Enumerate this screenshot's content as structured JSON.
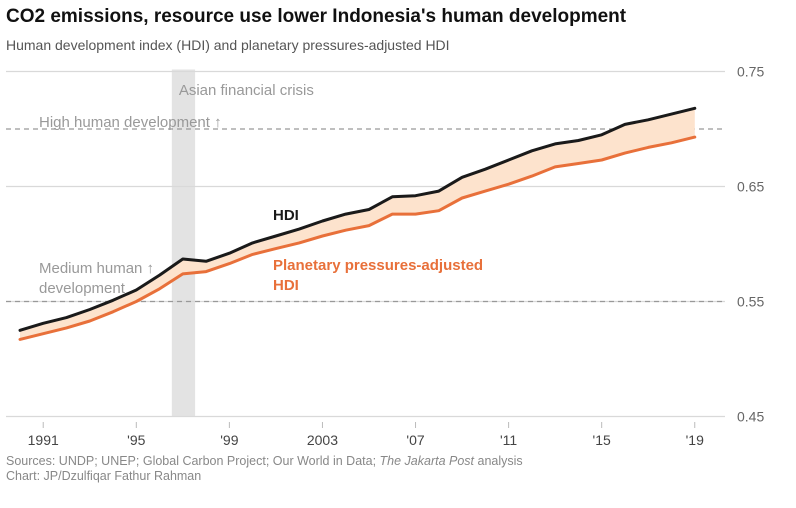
{
  "title": "CO2 emissions, resource use lower Indonesia's human development",
  "subtitle": "Human development index (HDI) and planetary pressures-adjusted HDI",
  "footer": {
    "sources_prefix": "Sources: UNDP; UNEP; Global Carbon Project; Our World in Data; ",
    "sources_italic": "The Jakarta Post",
    "sources_suffix": " analysis",
    "credit": "Chart: JP/Dzulfiqar Fathur Rahman"
  },
  "colors": {
    "hdi": "#1a1a1a",
    "pphdi": "#e8703a",
    "band": "#fde3cd",
    "crisis": "#e3e3e3",
    "grid": "#d9d9d9",
    "threshold": "#999999",
    "muted_text": "#999999"
  },
  "chart_data": {
    "type": "line",
    "title": "CO2 emissions, resource use lower Indonesia's human development",
    "subtitle": "Human development index (HDI) and planetary pressures-adjusted HDI",
    "x": [
      1990,
      1991,
      1992,
      1993,
      1994,
      1995,
      1996,
      1997,
      1998,
      1999,
      2000,
      2001,
      2002,
      2003,
      2004,
      2005,
      2006,
      2007,
      2008,
      2009,
      2010,
      2011,
      2012,
      2013,
      2014,
      2015,
      2016,
      2017,
      2018,
      2019
    ],
    "series": [
      {
        "name": "HDI",
        "color": "#1a1a1a",
        "values": [
          0.525,
          0.531,
          0.536,
          0.543,
          0.551,
          0.56,
          0.573,
          0.587,
          0.585,
          0.592,
          0.601,
          0.607,
          0.613,
          0.62,
          0.626,
          0.63,
          0.641,
          0.642,
          0.646,
          0.658,
          0.665,
          0.673,
          0.681,
          0.687,
          0.69,
          0.695,
          0.704,
          0.708,
          0.713,
          0.718
        ]
      },
      {
        "name": "Planetary pressures-adjusted HDI",
        "color": "#e8703a",
        "values": [
          0.517,
          0.522,
          0.527,
          0.533,
          0.541,
          0.55,
          0.561,
          0.574,
          0.576,
          0.583,
          0.591,
          0.596,
          0.601,
          0.607,
          0.612,
          0.616,
          0.626,
          0.626,
          0.629,
          0.64,
          0.646,
          0.652,
          0.659,
          0.667,
          0.67,
          0.673,
          0.679,
          0.684,
          0.688,
          0.693
        ]
      }
    ],
    "yaxis": {
      "range": [
        0.44,
        0.76
      ],
      "ticks": [
        "0.45",
        "0.55",
        "0.65",
        "0.75"
      ],
      "tick_values": [
        0.45,
        0.55,
        0.65,
        0.75
      ],
      "position": "right"
    },
    "xaxis": {
      "range": [
        1989.4,
        2020.3
      ],
      "ticks": [
        "1991",
        "'95",
        "'99",
        "2003",
        "'07",
        "'11",
        "'15",
        "'19"
      ],
      "tick_values": [
        1991,
        1995,
        1999,
        2003,
        2007,
        2011,
        2015,
        2019
      ]
    },
    "grid": true,
    "shaded_period": {
      "label": "Asian financial crisis",
      "from": 1997,
      "to": 1998
    },
    "thresholds": [
      {
        "value": 0.7,
        "label": "High human development ↑"
      },
      {
        "value": 0.55,
        "label_lines": [
          "Medium human ↑",
          "development"
        ]
      }
    ],
    "series_labels": {
      "hdi": [
        "HDI"
      ],
      "pphdi": [
        "Planetary pressures-adjusted",
        "HDI"
      ]
    },
    "fill_between": true
  }
}
